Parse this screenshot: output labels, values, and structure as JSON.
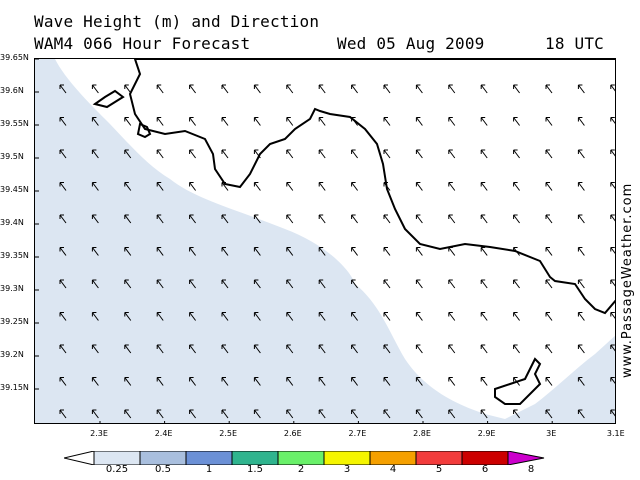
{
  "header": {
    "title": "Wave Height (m) and Direction",
    "model": "WAM4 066 Hour Forecast",
    "date": "Wed 05 Aug 2009",
    "time": "18 UTC"
  },
  "map": {
    "lat_labels": [
      "39.65N",
      "39.6N",
      "39.55N",
      "39.5N",
      "39.45N",
      "39.4N",
      "39.35N",
      "39.3N",
      "39.25N",
      "39.2N",
      "39.15N"
    ],
    "lon_labels": [
      "2.3E",
      "2.4E",
      "2.5E",
      "2.6E",
      "2.7E",
      "2.8E",
      "2.9E",
      "3E",
      "3.1E"
    ],
    "lat_range": [
      39.1,
      39.65
    ],
    "lon_range": [
      2.2,
      3.1
    ],
    "land_color": "#ffffff",
    "sea_low_color": "#dce6f2",
    "arrow_direction": "north-west",
    "watermark": "www.PassageWeather.com"
  },
  "legend": {
    "labels": [
      "0.25",
      "0.5",
      "1",
      "1.5",
      "2",
      "3",
      "4",
      "5",
      "6",
      "8"
    ],
    "colors": [
      "#ffffff",
      "#dce6f2",
      "#a9bfde",
      "#6b90d6",
      "#2fb48e",
      "#69f069",
      "#f5f500",
      "#f5a000",
      "#f23c3c",
      "#cc0000",
      "#cc00cc"
    ]
  }
}
